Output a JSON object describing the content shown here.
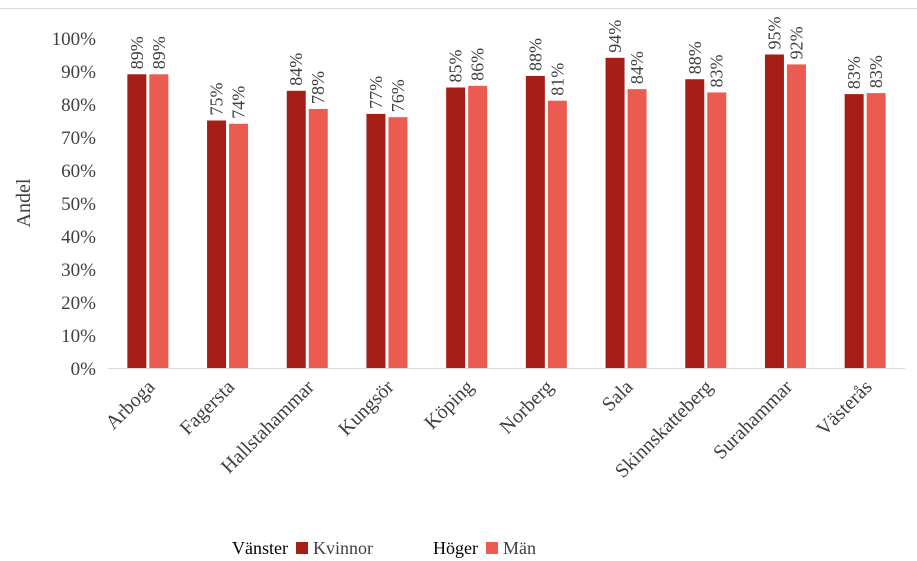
{
  "chart_data": {
    "type": "bar",
    "title": "",
    "xlabel": "",
    "ylabel": "Andel",
    "ylim": [
      0,
      1
    ],
    "yticks": [
      "0%",
      "10%",
      "20%",
      "30%",
      "40%",
      "50%",
      "60%",
      "70%",
      "80%",
      "90%",
      "100%"
    ],
    "grid": false,
    "legend_position": "bottom",
    "categories": [
      "Arboga",
      "Fagersta",
      "Hallstahammar",
      "Kungsör",
      "Köping",
      "Norberg",
      "Sala",
      "Skinnskatteberg",
      "Surahammar",
      "Västerås"
    ],
    "series": [
      {
        "name": "Kvinnor",
        "axis_label": "Vänster",
        "color": "#a51f16",
        "values": [
          0.89,
          0.75,
          0.84,
          0.77,
          0.85,
          0.885,
          0.94,
          0.875,
          0.95,
          0.83
        ],
        "data_labels": [
          "89%",
          "75%",
          "84%",
          "77%",
          "85%",
          "88%",
          "94%",
          "88%",
          "95%",
          "83%"
        ]
      },
      {
        "name": "Män",
        "axis_label": "Höger",
        "color": "#ec5b50",
        "values": [
          0.89,
          0.74,
          0.785,
          0.76,
          0.855,
          0.81,
          0.845,
          0.835,
          0.92,
          0.833
        ],
        "data_labels": [
          "89%",
          "74%",
          "78%",
          "76%",
          "86%",
          "81%",
          "84%",
          "83%",
          "92%",
          "83%"
        ]
      }
    ]
  }
}
